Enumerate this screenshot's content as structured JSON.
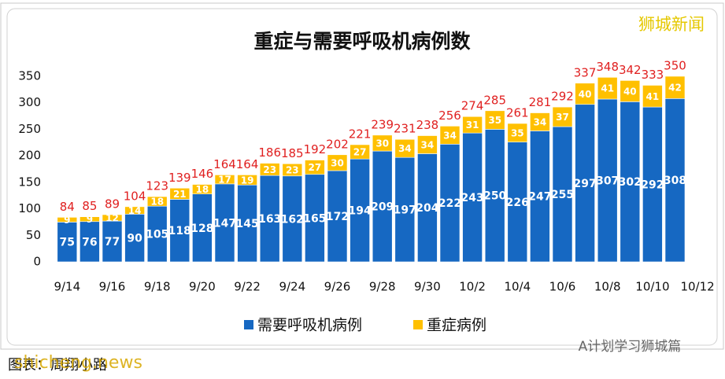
{
  "chart_data": {
    "type": "stacked_bar",
    "title": "重症与需要呼吸机病例数",
    "categories": [
      "9/14",
      null,
      "9/16",
      null,
      "9/18",
      null,
      "9/20",
      null,
      "9/22",
      null,
      "9/24",
      null,
      "9/26",
      null,
      "9/28",
      null,
      "9/30",
      null,
      "10/2",
      null,
      "10/4",
      null,
      "10/6",
      null,
      "10/8",
      null,
      "10/10",
      null,
      "10/12"
    ],
    "series": [
      {
        "name": "需要呼吸机病例",
        "color": "#1668c2",
        "values": [
          75,
          76,
          77,
          90,
          105,
          118,
          128,
          147,
          145,
          163,
          162,
          165,
          172,
          194,
          209,
          197,
          204,
          222,
          243,
          250,
          226,
          247,
          255,
          297,
          307,
          302,
          292,
          308,
          null
        ]
      },
      {
        "name": "重症病例",
        "color": "#ffc000",
        "values": [
          9,
          9,
          12,
          14,
          18,
          21,
          18,
          17,
          19,
          23,
          23,
          27,
          30,
          27,
          30,
          34,
          34,
          34,
          31,
          35,
          35,
          34,
          37,
          40,
          41,
          40,
          41,
          42,
          null
        ]
      }
    ],
    "totals": [
      84,
      85,
      89,
      104,
      123,
      139,
      146,
      164,
      164,
      186,
      185,
      192,
      202,
      221,
      239,
      231,
      238,
      256,
      274,
      285,
      261,
      281,
      292,
      337,
      348,
      342,
      333,
      350,
      null
    ],
    "ylim": [
      0,
      350
    ],
    "yticks": [
      0,
      50,
      100,
      150,
      200,
      250,
      300,
      350
    ],
    "grid": false,
    "legend": "bottom",
    "watermark": "狮城新闻",
    "wechat": "A计划学习狮城篇",
    "credit": "图表：周翔小路",
    "site": "shicheng.news"
  }
}
